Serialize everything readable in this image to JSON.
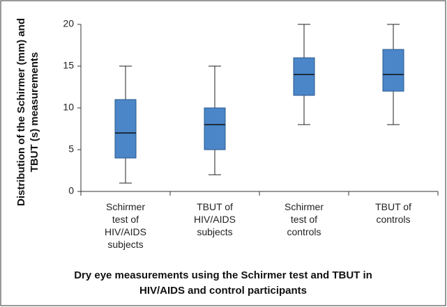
{
  "chart_data": {
    "type": "box",
    "title": "Dry eye measurements using the Schirmer test and TBUT in HIV/AIDS and control participants",
    "y_label": "Distribution of the Schirmer (mm) and TBUT (s) measurements",
    "categories": [
      "Schirmer test of HIV/AIDS subjects",
      "TBUT of HIV/AIDS subjects",
      "Schirmer test of controls",
      "TBUT of controls"
    ],
    "boxes": [
      {
        "min": 1,
        "q1": 4,
        "median": 7,
        "q3": 11,
        "max": 15
      },
      {
        "min": 2,
        "q1": 5,
        "median": 8,
        "q3": 10,
        "max": 15
      },
      {
        "min": 8,
        "q1": 11.5,
        "median": 14,
        "q3": 16,
        "max": 20
      },
      {
        "min": 8,
        "q1": 12,
        "median": 14,
        "q3": 17,
        "max": 20
      }
    ],
    "color": "#4a86c8",
    "ylim": [
      0,
      20
    ],
    "yticks": [
      0,
      5,
      10,
      15,
      20
    ]
  }
}
